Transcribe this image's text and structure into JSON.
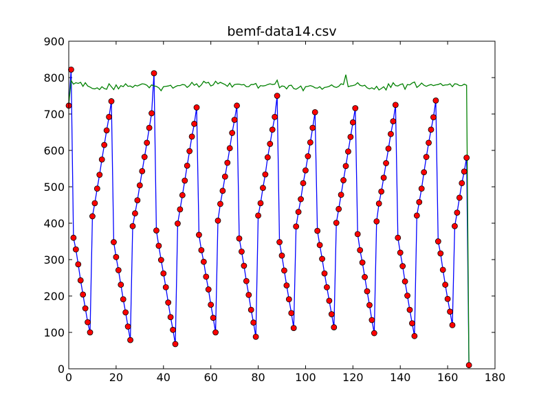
{
  "chart_data": {
    "type": "line",
    "title": "bemf-data14.csv",
    "xlabel": "",
    "ylabel": "",
    "xlim": [
      0,
      180
    ],
    "ylim": [
      0,
      900
    ],
    "xticks": [
      0,
      20,
      40,
      60,
      80,
      100,
      120,
      140,
      160,
      180
    ],
    "yticks": [
      0,
      100,
      200,
      300,
      400,
      500,
      600,
      700,
      800,
      900
    ],
    "grid": false,
    "legend": "none",
    "series": [
      {
        "color": "#0000ff",
        "marker": "circle",
        "marker_color": "#ff0000",
        "x": [
          0,
          1,
          2,
          3,
          4,
          5,
          6,
          7,
          8,
          9,
          10,
          11,
          12,
          13,
          14,
          15,
          16,
          17,
          18,
          19,
          20,
          21,
          22,
          23,
          24,
          25,
          26,
          27,
          28,
          29,
          30,
          31,
          32,
          33,
          34,
          35,
          36,
          37,
          38,
          39,
          40,
          41,
          42,
          43,
          44,
          45,
          46,
          47,
          48,
          49,
          50,
          51,
          52,
          53,
          54,
          55,
          56,
          57,
          58,
          59,
          60,
          61,
          62,
          63,
          64,
          65,
          66,
          67,
          68,
          69,
          70,
          71,
          72,
          73,
          74,
          75,
          76,
          77,
          78,
          79,
          80,
          81,
          82,
          83,
          84,
          85,
          86,
          87,
          88,
          89,
          90,
          91,
          92,
          93,
          94,
          95,
          96,
          97,
          98,
          99,
          100,
          101,
          102,
          103,
          104,
          105,
          106,
          107,
          108,
          109,
          110,
          111,
          112,
          113,
          114,
          115,
          116,
          117,
          118,
          119,
          120,
          121,
          122,
          123,
          124,
          125,
          126,
          127,
          128,
          129,
          130,
          131,
          132,
          133,
          134,
          135,
          136,
          137,
          138,
          139,
          140,
          141,
          142,
          143,
          144,
          145,
          146,
          147,
          148,
          149,
          150,
          151,
          152,
          153,
          154,
          155,
          156,
          157,
          158,
          159,
          160,
          161,
          162,
          163,
          164,
          165,
          166,
          167,
          168,
          169
        ],
        "y": [
          723,
          822,
          360,
          328,
          287,
          243,
          204,
          166,
          128,
          100,
          419,
          455,
          495,
          533,
          575,
          615,
          655,
          692,
          735,
          348,
          307,
          271,
          231,
          191,
          155,
          116,
          79,
          392,
          427,
          463,
          504,
          543,
          582,
          621,
          662,
          702,
          812,
          380,
          338,
          299,
          262,
          224,
          182,
          142,
          107,
          68,
          399,
          438,
          477,
          517,
          558,
          598,
          638,
          673,
          718,
          368,
          326,
          294,
          253,
          218,
          176,
          140,
          100,
          407,
          453,
          489,
          528,
          566,
          606,
          648,
          684,
          723,
          358,
          322,
          283,
          241,
          203,
          162,
          127,
          88,
          421,
          455,
          497,
          534,
          581,
          618,
          657,
          692,
          750,
          348,
          311,
          270,
          229,
          191,
          153,
          112,
          391,
          431,
          466,
          510,
          545,
          584,
          622,
          662,
          705,
          379,
          340,
          302,
          262,
          224,
          187,
          150,
          114,
          401,
          439,
          478,
          518,
          557,
          597,
          637,
          677,
          716,
          370,
          326,
          292,
          252,
          213,
          175,
          134,
          98,
          405,
          454,
          487,
          525,
          565,
          605,
          645,
          680,
          725,
          360,
          319,
          282,
          240,
          201,
          162,
          125,
          90,
          421,
          458,
          495,
          540,
          582,
          621,
          657,
          691,
          737,
          350,
          317,
          272,
          231,
          192,
          157,
          120,
          392,
          429,
          470,
          510,
          542,
          580,
          10
        ]
      },
      {
        "color": "#008000",
        "marker": "none",
        "x": [
          0,
          1,
          2,
          3,
          4,
          5,
          6,
          7,
          8,
          9,
          10,
          11,
          12,
          13,
          14,
          15,
          16,
          17,
          18,
          19,
          20,
          21,
          22,
          23,
          24,
          25,
          26,
          27,
          28,
          29,
          30,
          31,
          32,
          33,
          34,
          35,
          36,
          37,
          38,
          39,
          40,
          41,
          42,
          43,
          44,
          45,
          46,
          47,
          48,
          49,
          50,
          51,
          52,
          53,
          54,
          55,
          56,
          57,
          58,
          59,
          60,
          61,
          62,
          63,
          64,
          65,
          66,
          67,
          68,
          69,
          70,
          71,
          72,
          73,
          74,
          75,
          76,
          77,
          78,
          79,
          80,
          81,
          82,
          83,
          84,
          85,
          86,
          87,
          88,
          89,
          90,
          91,
          92,
          93,
          94,
          95,
          96,
          97,
          98,
          99,
          100,
          101,
          102,
          103,
          104,
          105,
          106,
          107,
          108,
          109,
          110,
          111,
          112,
          113,
          114,
          115,
          116,
          117,
          118,
          119,
          120,
          121,
          122,
          123,
          124,
          125,
          126,
          127,
          128,
          129,
          130,
          131,
          132,
          133,
          134,
          135,
          136,
          137,
          138,
          139,
          140,
          141,
          142,
          143,
          144,
          145,
          146,
          147,
          148,
          149,
          150,
          151,
          152,
          153,
          154,
          155,
          156,
          157,
          158,
          159,
          160,
          161,
          162,
          163,
          164,
          165,
          166,
          167,
          168,
          169
        ],
        "y": [
          727,
          792,
          782,
          786,
          784,
          787,
          776,
          786,
          777,
          774,
          770,
          769,
          772,
          767,
          775,
          770,
          768,
          783,
          775,
          767,
          780,
          769,
          778,
          775,
          783,
          776,
          777,
          773,
          779,
          777,
          780,
          783,
          782,
          779,
          772,
          780,
          777,
          776,
          772,
          764,
          775,
          776,
          777,
          779,
          771,
          775,
          778,
          778,
          781,
          780,
          773,
          778,
          787,
          779,
          783,
          774,
          780,
          790,
          785,
          787,
          777,
          780,
          790,
          783,
          787,
          784,
          781,
          776,
          785,
          774,
          781,
          782,
          782,
          780,
          781,
          775,
          775,
          781,
          781,
          784,
          771,
          778,
          777,
          778,
          781,
          783,
          781,
          782,
          793,
          772,
          777,
          776,
          769,
          778,
          779,
          770,
          768,
          772,
          777,
          764,
          775,
          776,
          778,
          776,
          772,
          771,
          775,
          768,
          773,
          774,
          776,
          780,
          775,
          773,
          776,
          783,
          781,
          808,
          775,
          777,
          778,
          780,
          786,
          779,
          777,
          779,
          772,
          769,
          772,
          768,
          776,
          766,
          770,
          775,
          766,
          783,
          773,
          786,
          778,
          777,
          781,
          783,
          768,
          781,
          780,
          785,
          788,
          773,
          778,
          785,
          779,
          776,
          779,
          781,
          778,
          780,
          781,
          784,
          778,
          780,
          780,
          783,
          775,
          783,
          782,
          778,
          778,
          782,
          779,
          10
        ]
      }
    ]
  }
}
